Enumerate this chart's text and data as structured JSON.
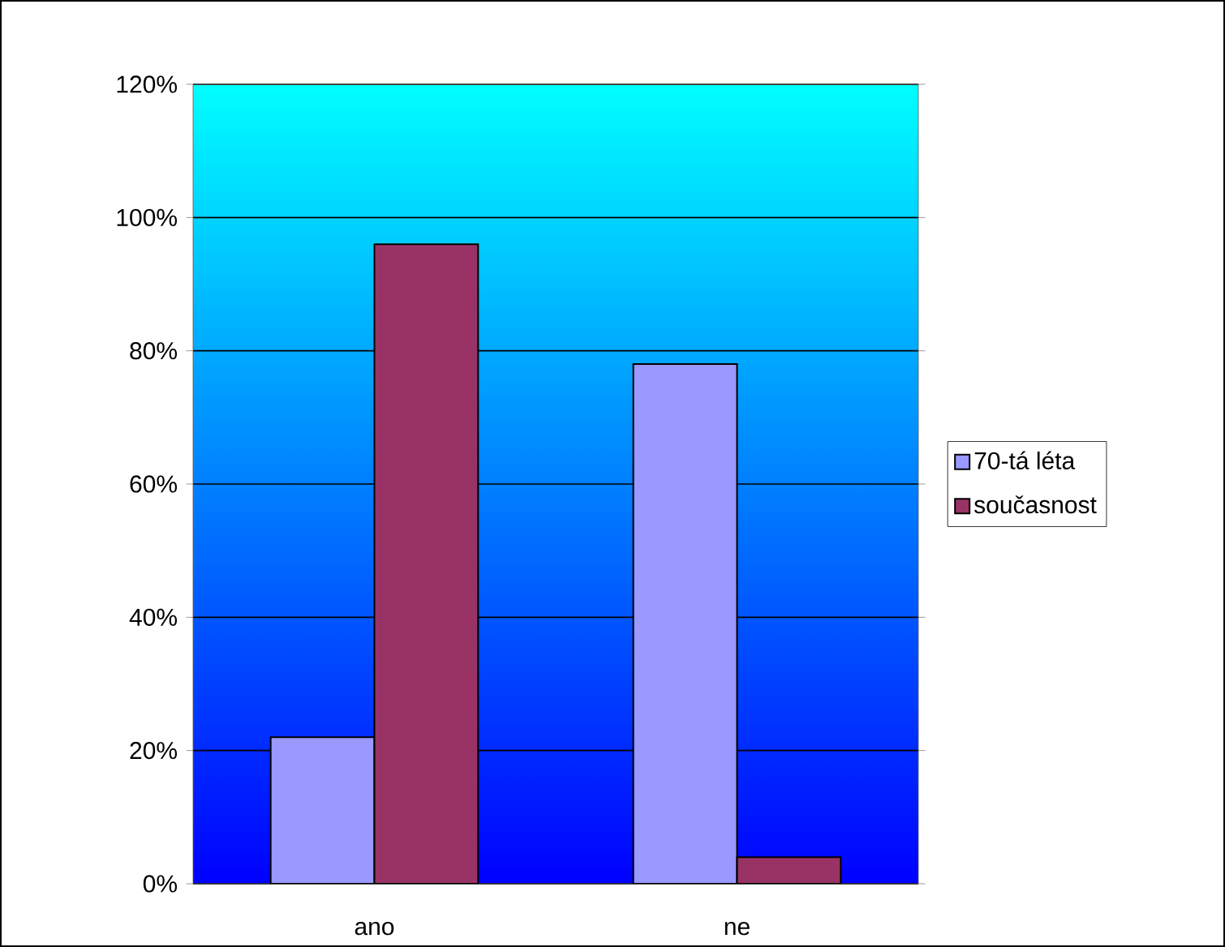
{
  "chart_data": {
    "type": "bar",
    "categories": [
      "ano",
      "ne"
    ],
    "series": [
      {
        "name": "70-tá léta",
        "color": "#9999ff",
        "values": [
          22,
          78
        ]
      },
      {
        "name": "současnost",
        "color": "#993366",
        "values": [
          96,
          4
        ]
      }
    ],
    "ylim": [
      0,
      120
    ],
    "yticks": [
      {
        "value": 0,
        "label": "0%"
      },
      {
        "value": 20,
        "label": "20%"
      },
      {
        "value": 40,
        "label": "40%"
      },
      {
        "value": 60,
        "label": "60%"
      },
      {
        "value": 80,
        "label": "80%"
      },
      {
        "value": 100,
        "label": "100%"
      },
      {
        "value": 120,
        "label": "120%"
      }
    ],
    "grid": "y",
    "legend": "right"
  }
}
